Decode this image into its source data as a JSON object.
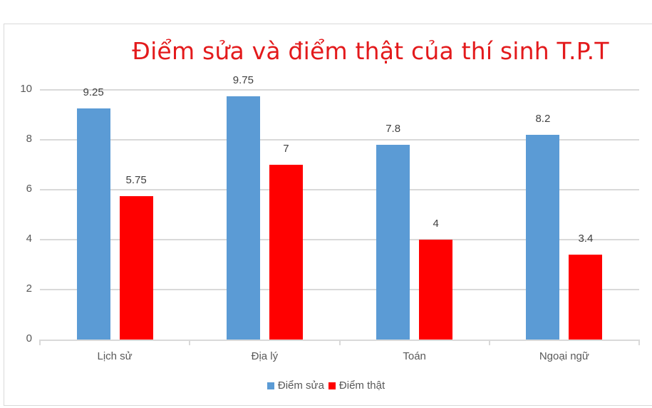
{
  "chart_data": {
    "type": "bar",
    "title": "Điểm sửa và điểm thật của thí sinh T.P.T",
    "categories": [
      "Lịch sử",
      "Địa lý",
      "Toán",
      "Ngoại ngữ"
    ],
    "series": [
      {
        "name": "Điểm sửa",
        "color": "#5b9bd5",
        "values": [
          9.25,
          9.75,
          7.8,
          8.2
        ],
        "labels": [
          "9.25",
          "9.75",
          "7.8",
          "8.2"
        ]
      },
      {
        "name": "Điểm thật",
        "color": "#ff0000",
        "values": [
          5.75,
          7,
          4,
          3.4
        ],
        "labels": [
          "5.75",
          "7",
          "4",
          "3.4"
        ]
      }
    ],
    "xlabel": "",
    "ylabel": "",
    "ylim": [
      0,
      10
    ],
    "yticks": [
      "0",
      "2",
      "4",
      "6",
      "8",
      "10"
    ],
    "grid": true,
    "legend_position": "bottom",
    "data_labels": true
  }
}
